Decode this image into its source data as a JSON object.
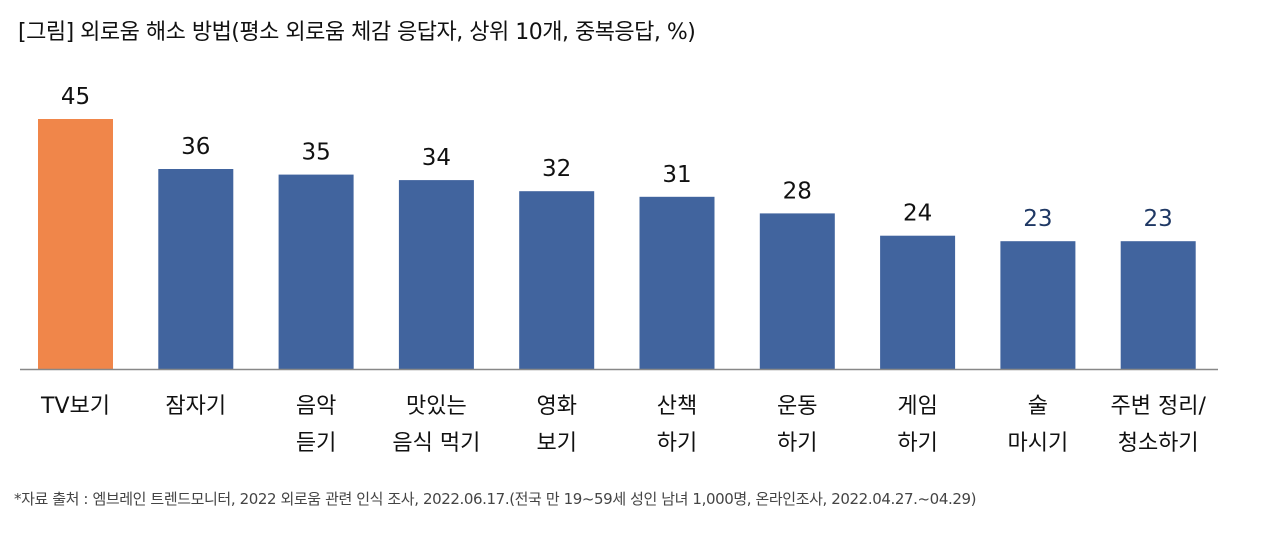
{
  "chart_data": {
    "type": "bar",
    "title": "[그림] 외로움 해소 방법(평소 외로움 체감 응답자, 상위 10개, 중복응답, %)",
    "categories": [
      "TV보기",
      "잠자기",
      "음악\n듣기",
      "맛있는\n음식 먹기",
      "영화\n보기",
      "산책\n하기",
      "운동\n하기",
      "게임\n하기",
      "술\n마시기",
      "주변 정리/\n청소하기"
    ],
    "values": [
      45,
      36,
      35,
      34,
      32,
      31,
      28,
      24,
      23,
      23
    ],
    "highlight_index": 0,
    "colors": {
      "highlight": "#F0864A",
      "default": "#41649E",
      "label": "#111111",
      "label_alt": "#1F3864",
      "axis": "#888888"
    },
    "ylim": [
      0,
      45
    ],
    "xlabel": "",
    "ylabel": ""
  },
  "source_note": "*자료 출처 : 엠브레인 트렌드모니터, 2022 외로움 관련 인식 조사, 2022.06.17.(전국 만 19~59세  성인 남녀 1,000명, 온라인조사, 2022.04.27.~04.29)"
}
